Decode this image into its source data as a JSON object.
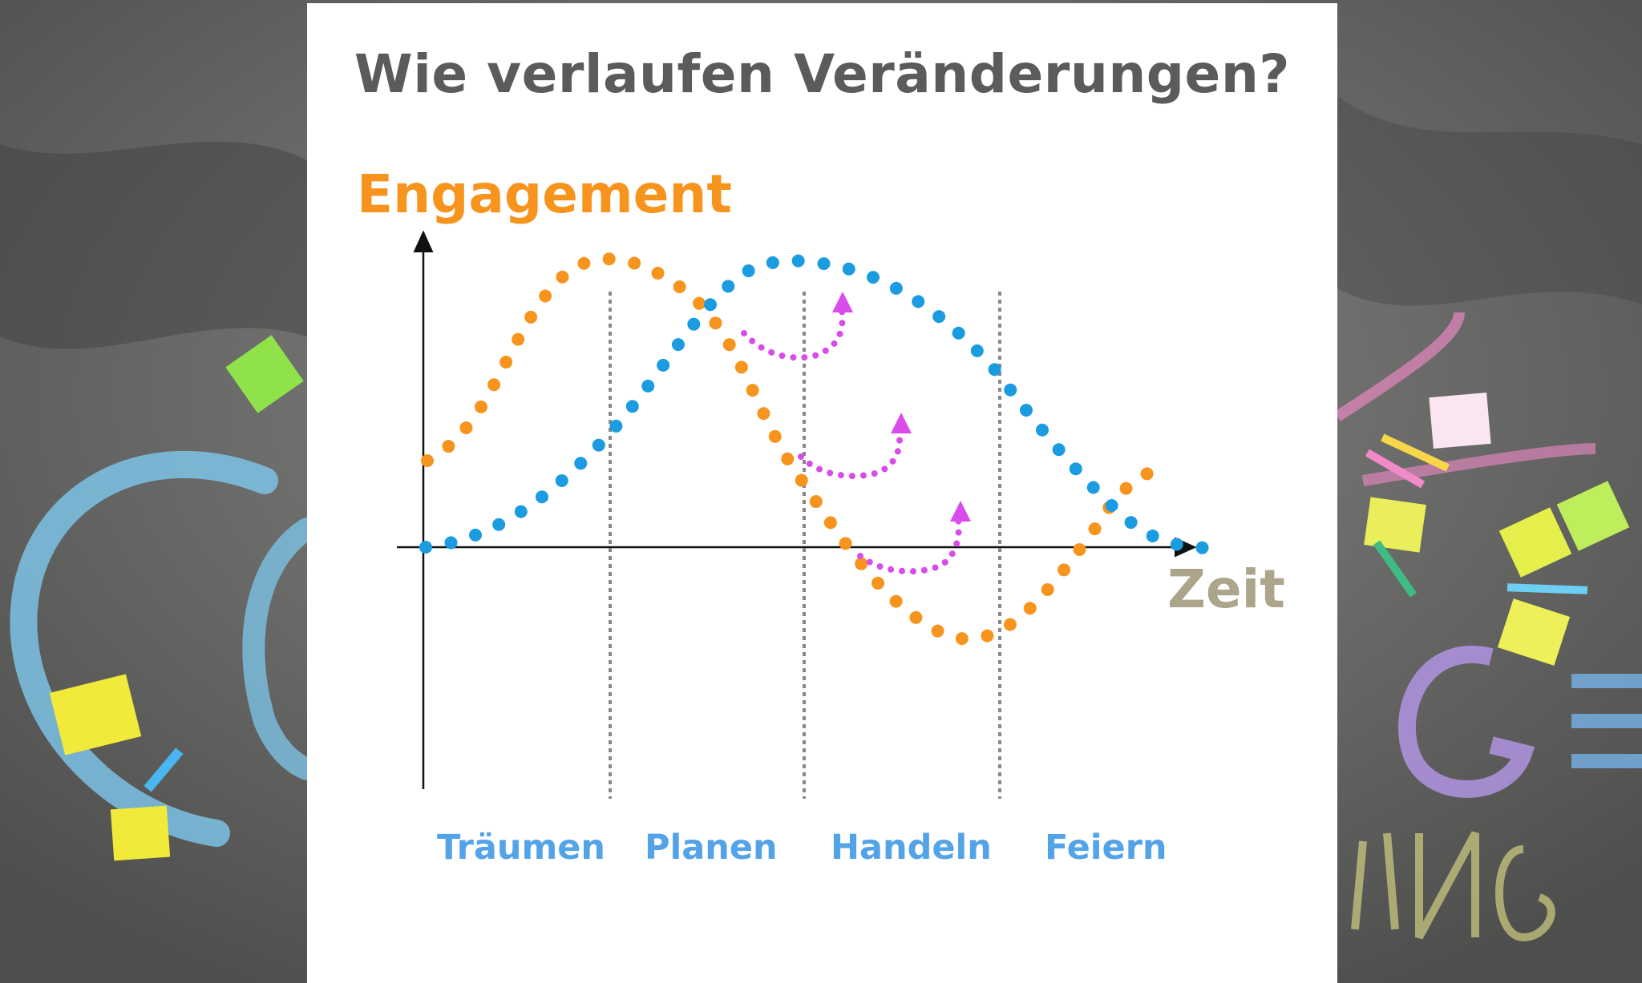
{
  "slide": {
    "title": "Wie verlaufen Veränderungen?",
    "y_label": "Engagement",
    "x_label": "Zeit",
    "phases": [
      "Träumen",
      "Planen",
      "Handeln",
      "Feiern"
    ]
  },
  "background": {
    "description_icons": [
      "chalk-letters",
      "sticky-notes",
      "chalk-pieces"
    ]
  },
  "colors": {
    "title": "#5b5b5b",
    "engagement_label": "#f7941d",
    "time_label": "#aca48b",
    "phase_label": "#52a3e8",
    "orange_curve": "#f7941d",
    "blue_curve": "#1b9be0",
    "magenta_arrows": "#d94bea",
    "divider": "#888888",
    "axis": "#111111"
  }
}
